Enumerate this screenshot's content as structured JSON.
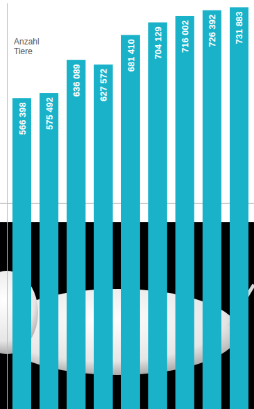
{
  "chart_data": {
    "type": "bar",
    "title": "Anzahl Tiere",
    "categories": [
      null,
      null,
      null,
      null,
      null,
      null,
      null,
      null,
      null
    ],
    "values": [
      566398,
      575492,
      636089,
      627572,
      681410,
      704129,
      716002,
      726392,
      731883
    ],
    "value_labels": [
      "566 398",
      "575 492",
      "636 089",
      "627 572",
      "681 410",
      "704 129",
      "716 002",
      "726 392",
      "731 883"
    ],
    "color": "#1ab2c9",
    "ylim": [
      0,
      740000
    ],
    "data_labels": true,
    "tick_labels": false
  }
}
